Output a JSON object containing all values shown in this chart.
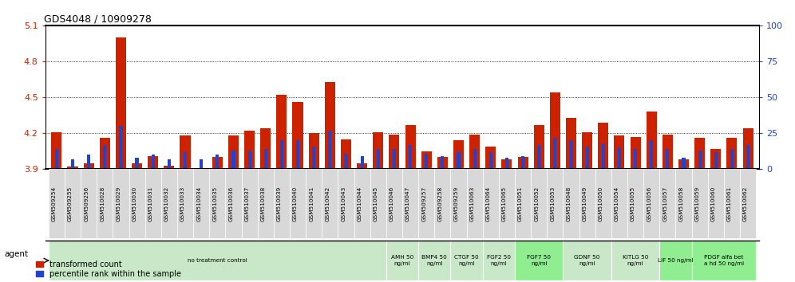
{
  "title": "GDS4048 / 10909278",
  "ylim_left": [
    3.9,
    5.1
  ],
  "ylim_right": [
    0,
    100
  ],
  "yticks_left": [
    3.9,
    4.2,
    4.5,
    4.8,
    5.1
  ],
  "yticks_right": [
    0,
    25,
    50,
    75,
    100
  ],
  "samples": [
    "GSM509254",
    "GSM509255",
    "GSM509256",
    "GSM510028",
    "GSM510029",
    "GSM510030",
    "GSM510031",
    "GSM510032",
    "GSM510033",
    "GSM510034",
    "GSM510035",
    "GSM510036",
    "GSM510037",
    "GSM510038",
    "GSM510039",
    "GSM510040",
    "GSM510041",
    "GSM510042",
    "GSM510043",
    "GSM510044",
    "GSM510045",
    "GSM510046",
    "GSM510047",
    "GSM509257",
    "GSM509258",
    "GSM509259",
    "GSM510063",
    "GSM510064",
    "GSM510065",
    "GSM510051",
    "GSM510052",
    "GSM510053",
    "GSM510048",
    "GSM510049",
    "GSM510050",
    "GSM510054",
    "GSM510055",
    "GSM510056",
    "GSM510057",
    "GSM510058",
    "GSM510059",
    "GSM510060",
    "GSM510061",
    "GSM510062"
  ],
  "red_values": [
    4.21,
    3.92,
    3.95,
    4.16,
    5.0,
    3.95,
    4.01,
    3.93,
    4.18,
    3.91,
    4.0,
    4.18,
    4.22,
    4.24,
    4.52,
    4.46,
    4.2,
    4.63,
    4.15,
    3.95,
    4.21,
    4.19,
    4.27,
    4.05,
    4.0,
    4.14,
    4.19,
    4.09,
    3.98,
    4.0,
    4.27,
    4.54,
    4.33,
    4.21,
    4.29,
    4.18,
    4.17,
    4.38,
    4.19,
    3.98,
    4.16,
    4.07,
    4.16,
    4.24
  ],
  "blue_values": [
    14,
    7,
    10,
    17,
    30,
    8,
    10,
    7,
    12,
    7,
    10,
    13,
    13,
    14,
    20,
    20,
    16,
    27,
    11,
    9,
    14,
    14,
    17,
    11,
    9,
    12,
    14,
    12,
    8,
    9,
    17,
    22,
    20,
    16,
    18,
    15,
    14,
    20,
    14,
    8,
    13,
    12,
    14,
    17
  ],
  "agent_groups": [
    {
      "label": "no treatment control",
      "start": 0,
      "end": 21,
      "bg": "#c8e8c8"
    },
    {
      "label": "AMH 50\nng/ml",
      "start": 21,
      "end": 23,
      "bg": "#c8e8c8"
    },
    {
      "label": "BMP4 50\nng/ml",
      "start": 23,
      "end": 25,
      "bg": "#c8e8c8"
    },
    {
      "label": "CTGF 50\nng/ml",
      "start": 25,
      "end": 27,
      "bg": "#c8e8c8"
    },
    {
      "label": "FGF2 50\nng/ml",
      "start": 27,
      "end": 29,
      "bg": "#c8e8c8"
    },
    {
      "label": "FGF7 50\nng/ml",
      "start": 29,
      "end": 32,
      "bg": "#90ee90"
    },
    {
      "label": "GDNF 50\nng/ml",
      "start": 32,
      "end": 35,
      "bg": "#c8e8c8"
    },
    {
      "label": "KITLG 50\nng/ml",
      "start": 35,
      "end": 38,
      "bg": "#c8e8c8"
    },
    {
      "label": "LIF 50 ng/ml",
      "start": 38,
      "end": 40,
      "bg": "#90ee90"
    },
    {
      "label": "PDGF alfa bet\na hd 50 ng/ml",
      "start": 40,
      "end": 44,
      "bg": "#90ee90"
    }
  ],
  "bar_width": 0.65,
  "red_color": "#cc2200",
  "blue_color": "#2244cc",
  "left_axis_color": "#cc2200",
  "right_axis_color": "#2244bb"
}
